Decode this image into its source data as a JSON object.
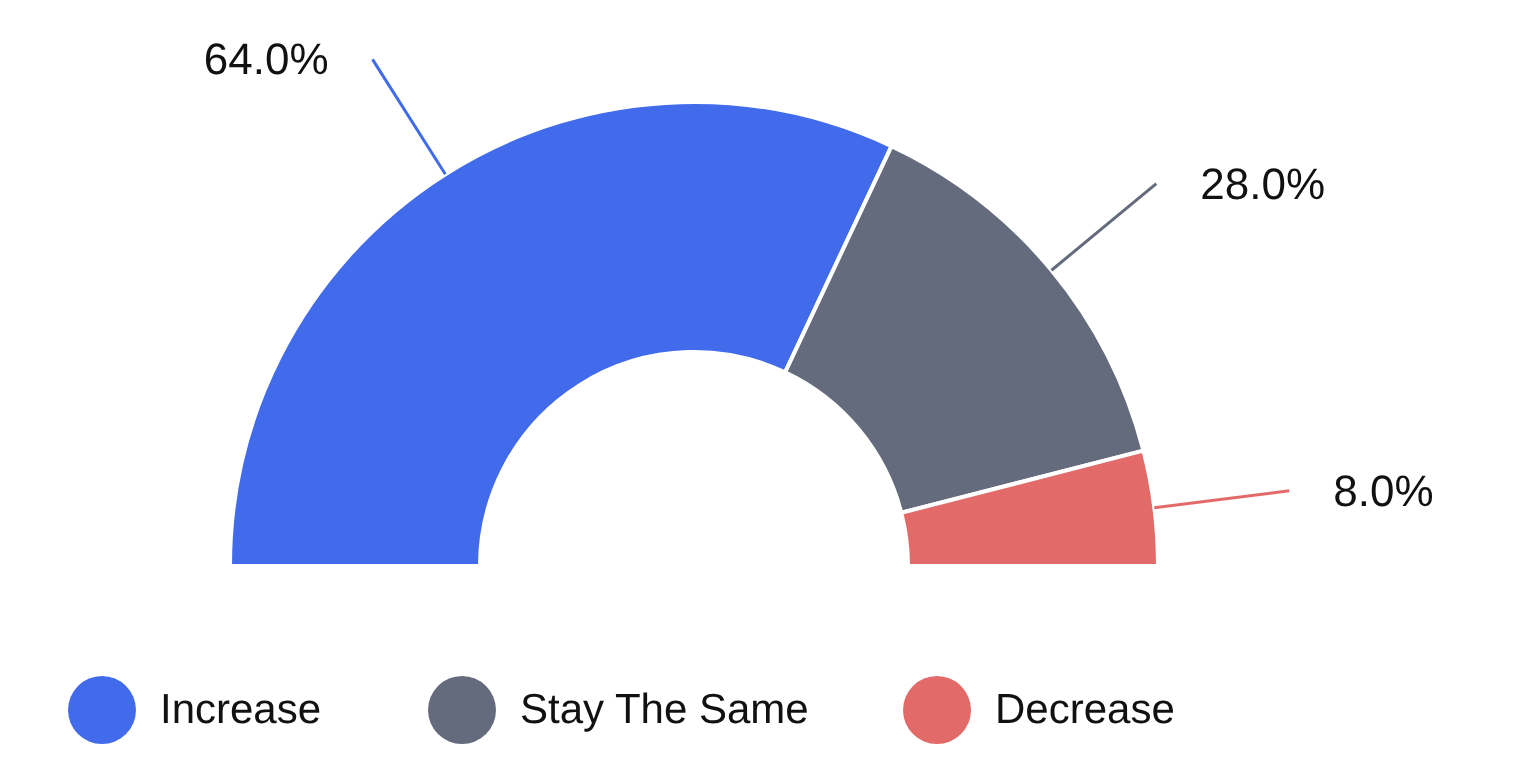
{
  "chart_data": {
    "type": "donut",
    "categories": [
      "Increase",
      "Stay The Same",
      "Decrease"
    ],
    "values": [
      64,
      28,
      8
    ],
    "colors": [
      "#426bec",
      "#646b7d",
      "#e26a68"
    ],
    "value_labels": [
      "64.0%",
      "28.0%",
      "8.0%"
    ],
    "legend": "bottom"
  }
}
